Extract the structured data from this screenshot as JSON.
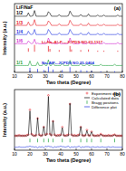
{
  "chart_data": [
    {
      "type": "line",
      "panel": "(a)",
      "x_label": "Two theta (Degree)",
      "y_label": "Intensity (a.u.)",
      "legend_title": "LiF/NaF",
      "xlim": [
        10,
        80
      ],
      "xticks": [
        10,
        20,
        30,
        40,
        50,
        60,
        70,
        80
      ],
      "ylim": [
        0,
        120
      ],
      "tick_labels": "x",
      "grid": false,
      "x": [
        10,
        11,
        12,
        13,
        14,
        15,
        16,
        17,
        18,
        19,
        20,
        21,
        22,
        23,
        24,
        25,
        26,
        27,
        28,
        29,
        30,
        31,
        32,
        33,
        34,
        35,
        36,
        37,
        38,
        39,
        40,
        41,
        42,
        43,
        44,
        45,
        46,
        47,
        48,
        49,
        50,
        51,
        52,
        53,
        54,
        55,
        56,
        57,
        58,
        59,
        60,
        61,
        62,
        63,
        64,
        65,
        66,
        67,
        68,
        69,
        70,
        71,
        72,
        73,
        74,
        75,
        76,
        77,
        78,
        79,
        80
      ],
      "series": [
        {
          "name": "1/2",
          "color": "#000000",
          "values": [
            98,
            98,
            98,
            98,
            98,
            98,
            98,
            98,
            98,
            104,
            98,
            98,
            99,
            108,
            98,
            98,
            98,
            98,
            98,
            98,
            98,
            99,
            106,
            103,
            98,
            98,
            98,
            98,
            98,
            101,
            98,
            98,
            98,
            98,
            98,
            99,
            107,
            102,
            98,
            98,
            98,
            98,
            98,
            101,
            98,
            98,
            98,
            98,
            102,
            98,
            98,
            98,
            98,
            98,
            100,
            98,
            98,
            98,
            100,
            98,
            98,
            98,
            98,
            98,
            98,
            98,
            98,
            100,
            98,
            98,
            98
          ]
        },
        {
          "name": "1/3",
          "color": "#e8141c",
          "values": [
            82,
            82,
            82,
            82,
            82,
            82,
            82,
            82,
            82,
            88,
            82,
            82,
            83,
            92,
            82,
            82,
            82,
            82,
            82,
            82,
            82,
            83,
            90,
            87,
            82,
            82,
            82,
            82,
            82,
            85,
            82,
            82,
            82,
            82,
            82,
            83,
            91,
            86,
            82,
            82,
            82,
            82,
            82,
            85,
            82,
            82,
            82,
            82,
            86,
            82,
            82,
            82,
            82,
            82,
            84,
            82,
            82,
            82,
            84,
            82,
            82,
            82,
            82,
            82,
            82,
            82,
            82,
            84,
            82,
            82,
            82
          ]
        },
        {
          "name": "1/4",
          "color": "#1a2fe0",
          "values": [
            66,
            66,
            66,
            66,
            66,
            66,
            66,
            66,
            66,
            72,
            67,
            66,
            67,
            75,
            66,
            66,
            66,
            66,
            66,
            66,
            66,
            67,
            75,
            71,
            66,
            66,
            66,
            66,
            66,
            69,
            66,
            66,
            66,
            66,
            66,
            67,
            75,
            70,
            66,
            66,
            66,
            66,
            66,
            69,
            66,
            66,
            66,
            66,
            70,
            66,
            66,
            66,
            66,
            66,
            68,
            66,
            66,
            66,
            68,
            66,
            66,
            66,
            66,
            66,
            66,
            66,
            66,
            68,
            66,
            66,
            66
          ]
        },
        {
          "name": "1/6",
          "color": "#d01fd0",
          "values": [
            50,
            50,
            50,
            50,
            50,
            50,
            50,
            50,
            50,
            55,
            52,
            50,
            51,
            58,
            50,
            51,
            50,
            50,
            50,
            50,
            50,
            51,
            60,
            54,
            50,
            51,
            50,
            50,
            50,
            52,
            50,
            50,
            50,
            50,
            50,
            51,
            60,
            53,
            50,
            50,
            50,
            50,
            50,
            53,
            50,
            50,
            50,
            50,
            53,
            50,
            50,
            50,
            50,
            50,
            52,
            50,
            50,
            50,
            52,
            50,
            50,
            50,
            50,
            50,
            50,
            50,
            50,
            52,
            50,
            50,
            50
          ]
        },
        {
          "name": "Li₃Na₃Al₂F₁₂-JCPDS NO.23-1117",
          "type": "stick",
          "color": "#e8141c",
          "baseline": 36,
          "x": [
            19,
            23,
            32,
            33,
            39,
            46,
            47,
            53,
            58,
            64,
            68,
            77
          ],
          "values": [
            42,
            48,
            46,
            41,
            39,
            46,
            40,
            39,
            40,
            38,
            38,
            38
          ]
        },
        {
          "name": "1/1",
          "color": "#18a038",
          "values": [
            12,
            12,
            12,
            12,
            12,
            12,
            12,
            12,
            12,
            12,
            20,
            12,
            12,
            12,
            12,
            18,
            12,
            12,
            12,
            16,
            12,
            12,
            22,
            12,
            12,
            17,
            12,
            12,
            12,
            12,
            12,
            16,
            12,
            12,
            12,
            12,
            21,
            12,
            12,
            12,
            12,
            12,
            12,
            16,
            12,
            12,
            12,
            15,
            12,
            12,
            15,
            12,
            12,
            12,
            12,
            12,
            14,
            12,
            12,
            12,
            12,
            12,
            12,
            12,
            12,
            14,
            12,
            12,
            12,
            12,
            12
          ]
        },
        {
          "name": "Na₃AlF₆-JCPDS NO.25-0404",
          "type": "stick",
          "color": "#1a2fe0",
          "baseline": 0,
          "x": [
            20,
            25,
            29,
            32,
            35,
            41,
            46,
            53,
            57,
            60,
            66,
            75
          ],
          "values": [
            8,
            6,
            4,
            10,
            5,
            4,
            9,
            4,
            3,
            3,
            2,
            2
          ]
        }
      ]
    },
    {
      "type": "line",
      "panel": "(b)",
      "x_label": "Two theta (Degree)",
      "y_label": "Intensity (a.u.)",
      "legend": "upper right",
      "xlim": [
        10,
        80
      ],
      "xticks": [
        10,
        20,
        30,
        40,
        50,
        60,
        70,
        80
      ],
      "ylim": [
        -10,
        95
      ],
      "tick_labels": "x",
      "grid": false,
      "x": [
        10,
        11,
        12,
        13,
        14,
        15,
        16,
        17,
        18,
        19,
        20,
        21,
        22,
        23,
        24,
        25,
        26,
        27,
        28,
        29,
        30,
        31,
        32,
        33,
        34,
        35,
        36,
        37,
        38,
        39,
        40,
        41,
        42,
        43,
        44,
        45,
        46,
        47,
        48,
        49,
        50,
        51,
        52,
        53,
        54,
        55,
        56,
        57,
        58,
        59,
        60,
        61,
        62,
        63,
        64,
        65,
        66,
        67,
        68,
        69,
        70,
        71,
        72,
        73,
        74,
        75,
        76,
        77,
        78,
        79,
        80
      ],
      "series": [
        {
          "name": "Experiment data",
          "type": "scatter",
          "marker": "circle",
          "color": "#e8141c",
          "values": [
            15,
            15,
            15,
            16,
            15,
            15,
            15,
            15,
            16,
            17,
            60,
            18,
            16,
            15,
            16,
            45,
            17,
            15,
            16,
            30,
            17,
            18,
            85,
            18,
            16,
            40,
            17,
            15,
            16,
            16,
            17,
            30,
            16,
            15,
            16,
            17,
            70,
            17,
            15,
            16,
            15,
            16,
            17,
            30,
            16,
            15,
            16,
            25,
            16,
            15,
            22,
            16,
            15,
            15,
            16,
            15,
            18,
            16,
            15,
            15,
            15,
            16,
            15,
            15,
            16,
            17,
            15,
            15,
            15,
            15,
            15
          ]
        },
        {
          "name": "Calculated data",
          "type": "line",
          "color": "#000000",
          "values": [
            15,
            15,
            15,
            15,
            15,
            15,
            15,
            15,
            15,
            16,
            58,
            17,
            15,
            15,
            15,
            46,
            16,
            15,
            15,
            31,
            15,
            17,
            83,
            17,
            15,
            41,
            16,
            15,
            15,
            15,
            15,
            29,
            15,
            15,
            15,
            15,
            71,
            16,
            15,
            15,
            15,
            15,
            15,
            31,
            15,
            15,
            15,
            24,
            15,
            15,
            22,
            15,
            15,
            15,
            15,
            15,
            18,
            15,
            15,
            15,
            15,
            15,
            15,
            15,
            15,
            17,
            15,
            15,
            15,
            15,
            15
          ]
        },
        {
          "name": "Bragg positions",
          "type": "bragg",
          "color": "#18a038",
          "x": [
            20,
            25,
            29,
            32,
            35,
            41,
            46,
            53,
            57,
            60,
            66,
            75
          ]
        },
        {
          "name": "Difference plot",
          "type": "line",
          "color": "#1a2fe0",
          "values": [
            -5,
            -5,
            -5,
            -4,
            -5,
            -5,
            -5,
            -5,
            -4,
            -4,
            -3,
            -4,
            -4,
            -5,
            -4,
            -6,
            -4,
            -5,
            -4,
            -6,
            -3,
            -4,
            -3,
            -4,
            -4,
            -6,
            -4,
            -5,
            -4,
            -4,
            -3,
            -4,
            -4,
            -5,
            -4,
            -3,
            -6,
            -4,
            -5,
            -4,
            -5,
            -4,
            -3,
            -6,
            -4,
            -5,
            -4,
            -4,
            -4,
            -5,
            -5,
            -4,
            -5,
            -5,
            -4,
            -5,
            -5,
            -4,
            -5,
            -5,
            -5,
            -4,
            -5,
            -5,
            -4,
            -5,
            -5,
            -5,
            -5,
            -5,
            -5
          ]
        }
      ]
    }
  ]
}
